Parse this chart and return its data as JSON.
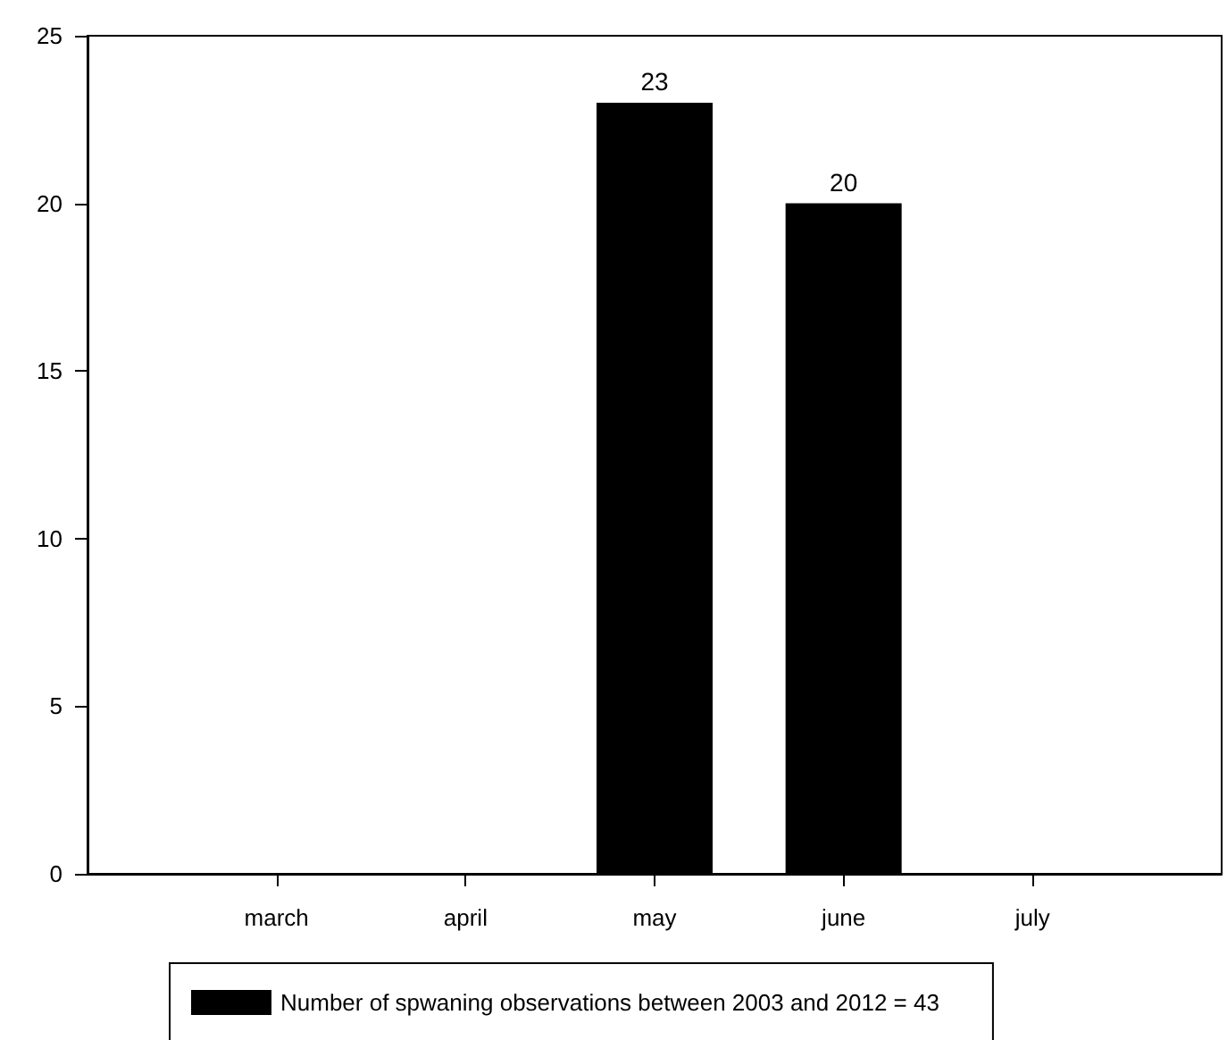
{
  "chart_data": {
    "type": "bar",
    "categories": [
      null,
      "march",
      "april",
      "may",
      "june",
      "july",
      null
    ],
    "series": [
      {
        "name": "Number of spwaning observations between 2003 and 2012 = 43",
        "color": "#000000",
        "values": [
          null,
          0,
          0,
          23,
          20,
          0,
          null
        ],
        "value_labels": [
          null,
          null,
          null,
          "23",
          "20",
          null,
          null
        ]
      }
    ],
    "ylim": [
      0,
      25
    ],
    "yticks": [
      0,
      5,
      10,
      15,
      20,
      25
    ],
    "grid": false,
    "legend": "bottom"
  }
}
